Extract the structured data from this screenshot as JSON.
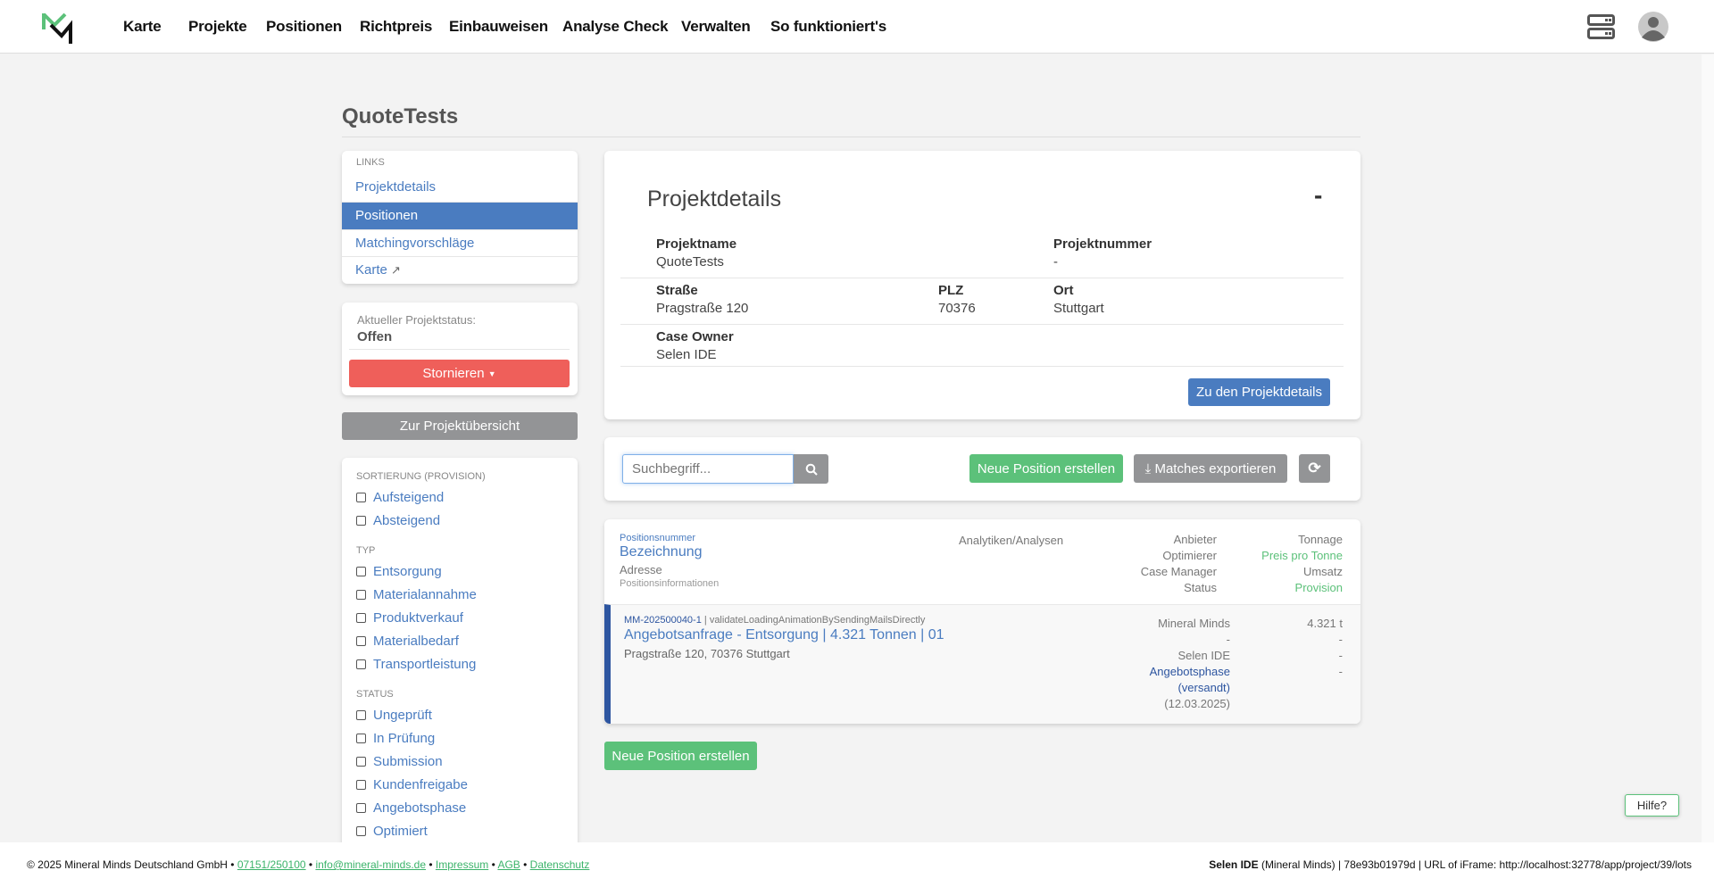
{
  "header": {
    "nav": [
      "Karte",
      "Projekte",
      "Positionen",
      "Richtpreis",
      "Einbauweisen",
      "Analyse Check",
      "Verwalten",
      "So funktioniert's"
    ],
    "icons": [
      "server-icon",
      "user-avatar-icon"
    ]
  },
  "page": {
    "title": "QuoteTests"
  },
  "sidebar": {
    "links_title": "LINKS",
    "links": [
      "Projektdetails",
      "Positionen",
      "Matchingvorschläge",
      "Karte"
    ],
    "active": "Positionen",
    "status_label": "Aktueller Projektstatus:",
    "status_value": "Offen",
    "cancel_button": "Stornieren",
    "overview_button": "Zur Projektübersicht",
    "filters": [
      {
        "title": "SORTIERUNG (PROVISION)",
        "items": [
          "Aufsteigend",
          "Absteigend"
        ]
      },
      {
        "title": "TYP",
        "items": [
          "Entsorgung",
          "Materialannahme",
          "Produktverkauf",
          "Materialbedarf",
          "Transportleistung"
        ]
      },
      {
        "title": "STATUS",
        "items": [
          "Ungeprüft",
          "In Prüfung",
          "Submission",
          "Kundenfreigabe",
          "Angebotsphase",
          "Optimiert"
        ]
      }
    ]
  },
  "details": {
    "title": "Projektdetails",
    "collapse": "-",
    "projektname_label": "Projektname",
    "projektname": "QuoteTests",
    "projektnummer_label": "Projektnummer",
    "projektnummer": "-",
    "strasse_label": "Straße",
    "strasse": "Pragstraße 120",
    "plz_label": "PLZ",
    "plz": "70376",
    "ort_label": "Ort",
    "ort": "Stuttgart",
    "owner_label": "Case Owner",
    "owner": "Selen IDE",
    "button": "Zu den Projektdetails"
  },
  "toolbar": {
    "search_placeholder": "Suchbegriff...",
    "new_position": "Neue Position erstellen",
    "export": "Matches exportieren"
  },
  "list": {
    "header": {
      "nummer": "Positionsnummer",
      "bezeichnung": "Bezeichnung",
      "adresse": "Adresse",
      "info": "Positionsinformationen",
      "analytics": "Analytiken/Analysen",
      "col1": [
        "Anbieter",
        "Optimierer",
        "Case Manager",
        "Status"
      ],
      "col2": [
        "Tonnage",
        "Preis pro Tonne",
        "Umsatz",
        "Provision"
      ]
    },
    "rows": [
      {
        "nummer": "MM-202500040-1",
        "info": " | validateLoadingAnimationBySendingMailsDirectly",
        "title": "Angebotsanfrage - Entsorgung | 4.321 Tonnen | 01",
        "address": "Pragstraße 120, 70376 Stuttgart",
        "anbieter": "Mineral Minds",
        "optimierer": "-",
        "manager": "Selen IDE",
        "status": "Angebotsphase",
        "status2": "(versandt)",
        "date": "(12.03.2025)",
        "tonnage": "4.321 t",
        "preis": "-",
        "umsatz": "-",
        "provision": "-"
      }
    ]
  },
  "bottom_button": "Neue Position erstellen",
  "help": "Hilfe?",
  "footer": {
    "copyright": "© 2025 Mineral Minds Deutschland GmbH",
    "phone": "07151/250100",
    "email": "info@mineral-minds.de",
    "impressum": "Impressum",
    "agb": "AGB",
    "datenschutz": "Datenschutz",
    "user": "Selen IDE",
    "user_info": " (Mineral Minds) | 78e93b01979d | URL of iFrame: http://localhost:32778/app/project/39/lots"
  },
  "colors": {
    "blue": "#4a7cc0",
    "red": "#ef5f5a",
    "green": "#5cc17a",
    "grey": "#939496",
    "row_border": "#2d55a0"
  }
}
